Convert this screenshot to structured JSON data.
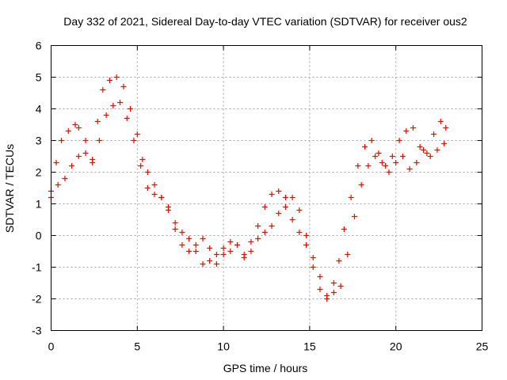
{
  "chart_data": {
    "type": "scatter",
    "title": "Day 332 of 2021, Sidereal Day-to-day VTEC variation (SDTVAR) for receiver ous2",
    "xlabel": "GPS time / hours",
    "ylabel": "SDTVAR / TECUs",
    "xlim": [
      0,
      25
    ],
    "ylim": [
      -3,
      6
    ],
    "x_ticks": [
      "0",
      "5",
      "10",
      "15",
      "20",
      "25"
    ],
    "y_ticks": [
      "-3",
      "-2",
      "-1",
      "0",
      "1",
      "2",
      "3",
      "4",
      "5",
      "6"
    ],
    "grid": true,
    "marker": "+",
    "color": "#ff0000",
    "series": [
      {
        "x": [
          0.0,
          0.3,
          0.6,
          1.0,
          1.4,
          1.6,
          2.0,
          2.4,
          2.7,
          3.0,
          3.4,
          3.8,
          4.2,
          4.6,
          5.0,
          5.3,
          5.6,
          6.0,
          6.4,
          6.8,
          7.2,
          7.6,
          8.0,
          8.4,
          8.8,
          9.2,
          9.6,
          10.0,
          10.4,
          10.8,
          11.2,
          11.6,
          12.0,
          12.4,
          12.8,
          13.2,
          13.6,
          14.0,
          14.4,
          14.8,
          15.2,
          15.6,
          16.0,
          16.4,
          16.7,
          17.0,
          17.4,
          17.8,
          18.2,
          18.6,
          19.0,
          19.4,
          19.8,
          20.2,
          20.6,
          21.0,
          21.4,
          21.8,
          22.2,
          22.6,
          22.9
        ],
        "y": [
          1.2,
          2.3,
          3.0,
          3.3,
          3.5,
          3.4,
          3.0,
          2.4,
          3.6,
          4.6,
          4.9,
          5.0,
          4.7,
          4.0,
          3.2,
          2.4,
          2.0,
          1.6,
          1.2,
          0.8,
          0.4,
          0.1,
          -0.1,
          -0.5,
          -0.9,
          -0.8,
          -0.6,
          -0.4,
          -0.5,
          -0.3,
          -0.6,
          -0.2,
          0.3,
          0.9,
          1.3,
          1.4,
          1.2,
          1.2,
          0.8,
          -0.3,
          -1.0,
          -1.7,
          -2.0,
          -1.5,
          -0.8,
          0.2,
          1.2,
          2.2,
          2.8,
          3.0,
          2.6,
          2.2,
          2.5,
          3.0,
          3.3,
          3.4,
          2.8,
          2.6,
          3.2,
          3.6,
          3.4
        ]
      },
      {
        "x": [
          0.0,
          0.4,
          0.8,
          1.2,
          1.6,
          2.0,
          2.4,
          2.8,
          3.2,
          3.6,
          4.0,
          4.4,
          4.8,
          5.2,
          5.6,
          6.0,
          6.4,
          6.8,
          7.2,
          7.6,
          8.0,
          8.4,
          8.8,
          9.2,
          9.6,
          10.0,
          10.4,
          10.8,
          11.2,
          11.6,
          12.0,
          12.4,
          12.8,
          13.2,
          13.6,
          14.0,
          14.4,
          14.8,
          15.2,
          15.6,
          16.0,
          16.4,
          16.8,
          17.2,
          17.6,
          18.0,
          18.4,
          18.8,
          19.2,
          19.6,
          20.0,
          20.4,
          20.8,
          21.2,
          21.6,
          22.0,
          22.4,
          22.8
        ],
        "y": [
          1.4,
          1.6,
          1.8,
          2.2,
          2.5,
          2.6,
          2.3,
          3.0,
          3.8,
          4.1,
          4.2,
          3.7,
          3.0,
          2.2,
          1.5,
          1.3,
          1.2,
          0.9,
          0.2,
          -0.3,
          -0.5,
          -0.3,
          -0.1,
          -0.4,
          -0.9,
          -0.6,
          -0.2,
          -0.3,
          -0.7,
          -0.5,
          -0.1,
          0.1,
          0.3,
          0.7,
          0.9,
          0.5,
          0.1,
          0.0,
          -0.7,
          -1.3,
          -1.9,
          -1.8,
          -1.6,
          -0.6,
          0.6,
          1.6,
          2.2,
          2.5,
          2.3,
          2.0,
          2.3,
          2.5,
          2.1,
          2.3,
          2.7,
          2.5,
          2.7,
          2.9
        ]
      }
    ]
  }
}
